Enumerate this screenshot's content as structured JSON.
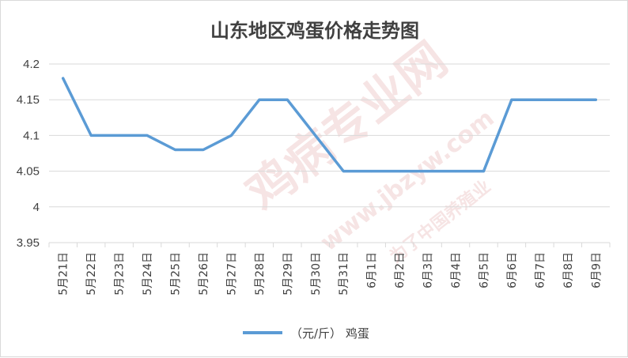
{
  "colors": {
    "line": "#5b9bd5",
    "grid": "#d9d9d9",
    "text": "#404040",
    "watermark": "#e8b4b4"
  },
  "chart_data": {
    "type": "line",
    "title": "山东地区鸡蛋价格走势图",
    "xlabel": "",
    "ylabel": "",
    "ylim": [
      3.95,
      4.2
    ],
    "yticks": [
      "3.95",
      "4",
      "4.05",
      "4.1",
      "4.15",
      "4.2"
    ],
    "categories": [
      "5月21日",
      "5月22日",
      "5月23日",
      "5月24日",
      "5月25日",
      "5月26日",
      "5月27日",
      "5月28日",
      "5月29日",
      "5月30日",
      "5月31日",
      "6月1日",
      "6月2日",
      "6月3日",
      "6月4日",
      "6月5日",
      "6月6日",
      "6月7日",
      "6月8日",
      "6月9日"
    ],
    "series": [
      {
        "name": "（元/斤） 鸡蛋",
        "values": [
          4.18,
          4.1,
          4.1,
          4.1,
          4.08,
          4.08,
          4.1,
          4.15,
          4.15,
          4.1,
          4.05,
          4.05,
          4.05,
          4.05,
          4.05,
          4.05,
          4.15,
          4.15,
          4.15,
          4.15
        ]
      }
    ],
    "grid": true,
    "legend_position": "bottom"
  },
  "watermark": {
    "main": "鸡病专业网",
    "url": "www.jbzyw.com",
    "sub": "为了中国养殖业"
  }
}
